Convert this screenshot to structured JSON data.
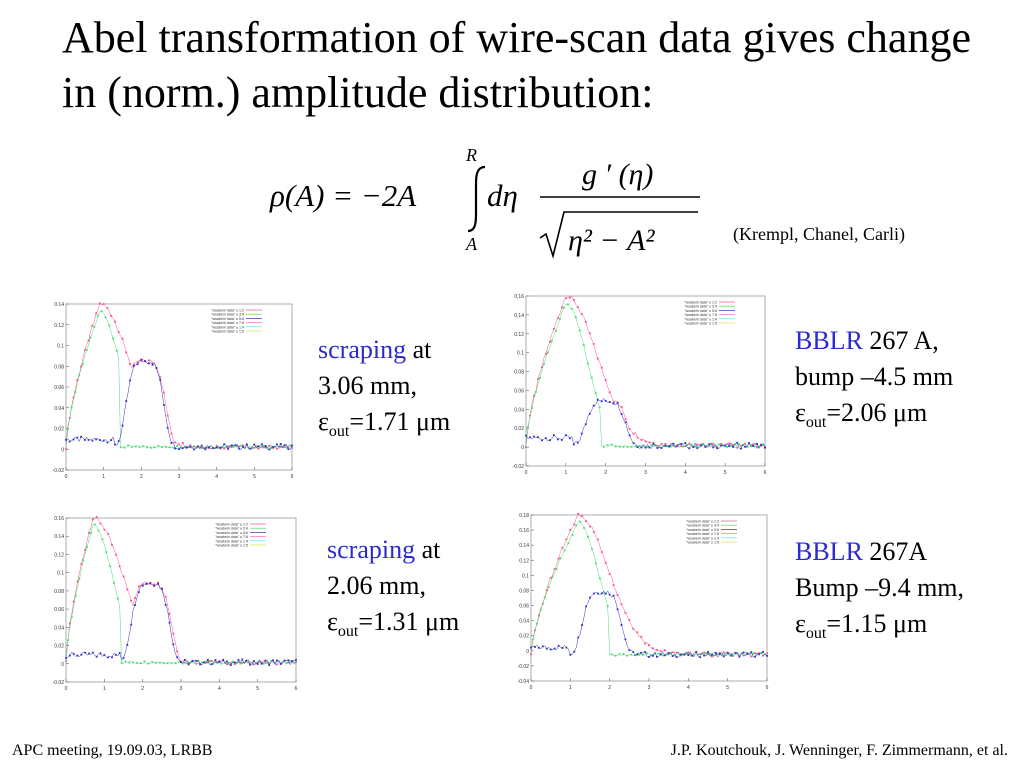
{
  "title": "Abel transformation of wire-scan data gives change in (norm.) amplitude distribution:",
  "formula": {
    "lhs": "ρ(A) = −2A",
    "upper_limit": "R",
    "lower_limit": "A",
    "d_eta": "dη",
    "numerator": "g ′ (η)",
    "denominator": "η² − A²"
  },
  "authors_note": "(Krempl, Chanel, Carli)",
  "legend_labels": [
    "\"wsabeln data\" u 1:2",
    "\"wsabeln data\" u 3:4",
    "\"wsabeln data\" u 5:6",
    "\"wsabeln data\" u 7:8",
    "\"wsabeln data\" u 1:4",
    "\"wsabeln data\" u 1:5"
  ],
  "colors": {
    "series1": "#ff4d8c",
    "series2": "#40e070",
    "series3": "#3030c0",
    "caption_highlight": "#2a2ad0"
  },
  "captions": [
    {
      "highlight": "scraping",
      "line1_rest": " at",
      "line2": "3.06 mm,",
      "eps": "ε",
      "sub": "out",
      "value": "=1.71 μm"
    },
    {
      "highlight": "BBLR",
      "line1_rest": " 267 A,",
      "line2": "bump –4.5 mm",
      "eps": "ε",
      "sub": "out",
      "value": "=2.06 μm"
    },
    {
      "highlight": "scraping",
      "line1_rest": " at",
      "line2": "2.06 mm,",
      "eps": "ε",
      "sub": "out",
      "value": "=1.31 μm"
    },
    {
      "highlight": "BBLR",
      "line1_rest": " 267A",
      "line2": "Bump –9.4 mm,",
      "eps": "ε",
      "sub": "out",
      "value": "=1.15 μm"
    }
  ],
  "plots": [
    {
      "yticks": [
        "0.14",
        "0.12",
        "0.1",
        "0.08",
        "0.06",
        "0.04",
        "0.02",
        "0",
        "-0.02"
      ],
      "xticks": [
        "0",
        "1",
        "2",
        "3",
        "4",
        "5",
        "6"
      ]
    },
    {
      "yticks": [
        "0.16",
        "0.14",
        "0.12",
        "0.1",
        "0.08",
        "0.06",
        "0.04",
        "0.02",
        "0",
        "-0.02"
      ],
      "xticks": [
        "0",
        "1",
        "2",
        "3",
        "4",
        "5",
        "6"
      ]
    },
    {
      "yticks": [
        "0.16",
        "0.14",
        "0.12",
        "0.1",
        "0.08",
        "0.06",
        "0.04",
        "0.02",
        "0",
        "-0.02"
      ],
      "xticks": [
        "0",
        "1",
        "2",
        "3",
        "4",
        "5",
        "6"
      ]
    },
    {
      "yticks": [
        "0.18",
        "0.16",
        "0.14",
        "0.12",
        "0.1",
        "0.08",
        "0.06",
        "0.04",
        "0.02",
        "0",
        "-0.02",
        "-0.04"
      ],
      "xticks": [
        "0",
        "1",
        "2",
        "3",
        "4",
        "5",
        "6"
      ]
    }
  ],
  "footer_left": "APC meeting, 19.09.03, LRBB",
  "footer_right": "J.P. Koutchouk, J. Wenninger, F. Zimmermann, et al."
}
